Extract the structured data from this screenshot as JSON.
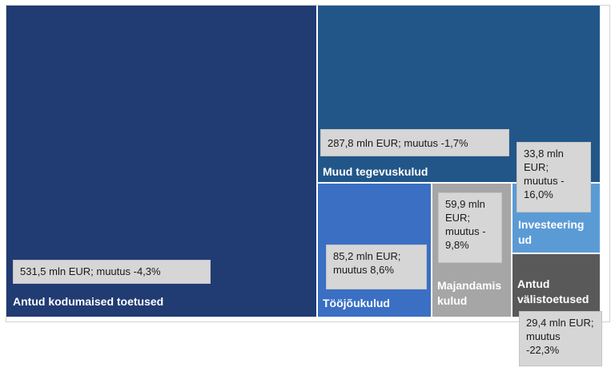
{
  "chart_data": {
    "type": "treemap",
    "items": [
      {
        "category": "Antud kodumaised toetused",
        "value": 531.5,
        "change": -4.3,
        "label": "531,5 mln EUR; muutus -4,3%",
        "color": "#213b73"
      },
      {
        "category": "Muud tegevuskulud",
        "value": 287.8,
        "change": -1.7,
        "label": "287,8 mln EUR;  muutus -1,7%",
        "color": "#225689"
      },
      {
        "category": "Tööjõukulud",
        "value": 85.2,
        "change": 8.6,
        "label": "85,2 mln EUR; muutus 8,6%",
        "color": "#3a6fc4"
      },
      {
        "category": "Majandamis kulud",
        "value": 59.9,
        "change": -9.8,
        "label": "59,9 mln EUR; muutus  - 9,8%",
        "color": "#a6a6a6"
      },
      {
        "category": "Investeering ud",
        "value": 33.8,
        "change": -16.0,
        "label": "33,8 mln EUR; muutus - 16,0%",
        "color": "#5b9bd5"
      },
      {
        "category": "Antud välistoetused",
        "value": 29.4,
        "change": -22.3,
        "label": "29,4 mln EUR; muutus -22,3%",
        "color": "#595959"
      }
    ]
  }
}
